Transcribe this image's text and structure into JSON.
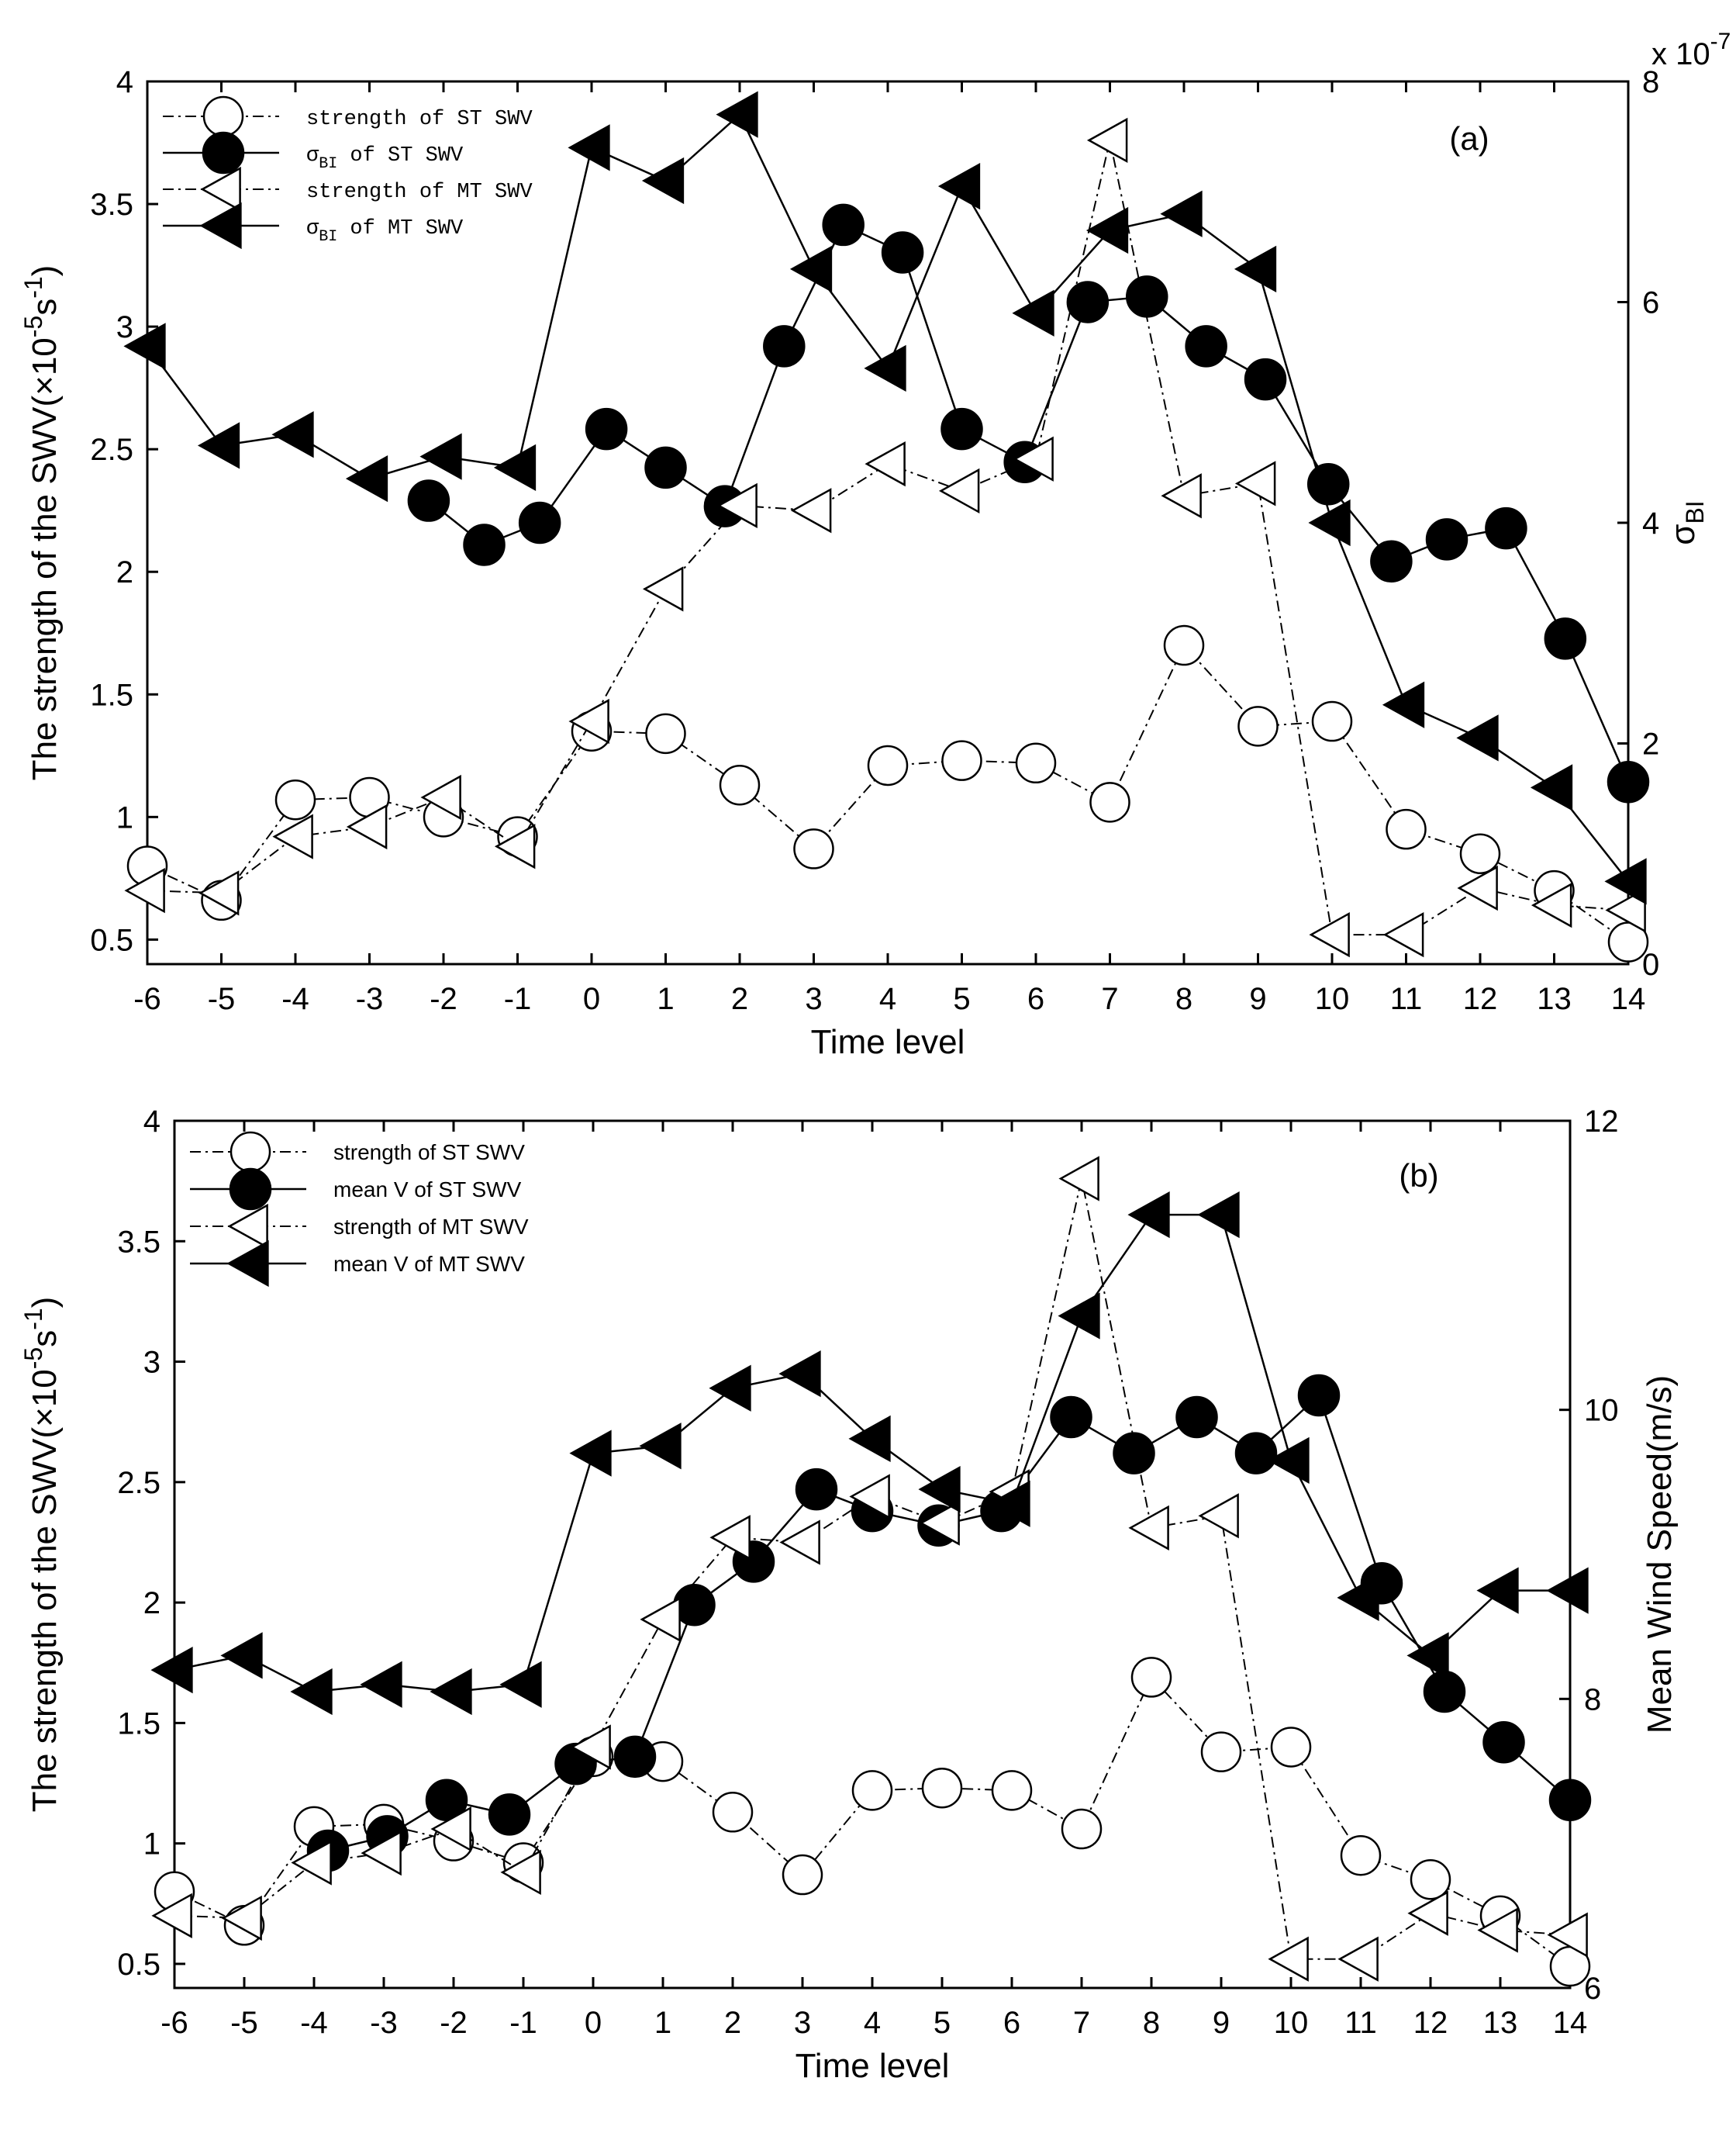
{
  "chart_data": [
    {
      "type": "line",
      "panel_label": "(a)",
      "xlabel": "Time level",
      "ylabel_left": "The strength of the SWV(×10",
      "ylabel_left_exp": "-5",
      "ylabel_left_unit": "s",
      "ylabel_left_unit_exp": "-1",
      "ylabel_left_close": ")",
      "ylabel_right": "σ",
      "ylabel_right_sub": "BI",
      "right_axis_multiplier": "x 10",
      "right_axis_multiplier_exp": "-7",
      "x_ticks": [
        "-6",
        "-5",
        "-4",
        "-3",
        "-2",
        "-1",
        "0",
        "1",
        "2",
        "3",
        "4",
        "5",
        "6",
        "7",
        "8",
        "9",
        "10",
        "11",
        "12",
        "13",
        "14"
      ],
      "y_ticks_left": [
        "0.5",
        "1",
        "1.5",
        "2",
        "2.5",
        "3",
        "3.5",
        "4"
      ],
      "y_ticks_right": [
        "0",
        "2",
        "4",
        "6",
        "8"
      ],
      "xlim": [
        -6,
        14
      ],
      "ylim_left": [
        0.4,
        4
      ],
      "ylim_right": [
        0,
        8
      ],
      "legend_position": "top-left",
      "series": [
        {
          "name": "strength of ST SWV",
          "axis": "left",
          "marker": "circle-open",
          "line": "dashdot",
          "points": [
            [
              -6,
              0.8
            ],
            [
              -5,
              0.66
            ],
            [
              -4,
              1.07
            ],
            [
              -3,
              1.08
            ],
            [
              -2,
              1.0
            ],
            [
              -1,
              0.92
            ],
            [
              0,
              1.35
            ],
            [
              1,
              1.34
            ],
            [
              2,
              1.13
            ],
            [
              3,
              0.87
            ],
            [
              4,
              1.21
            ],
            [
              5,
              1.23
            ],
            [
              6,
              1.22
            ],
            [
              7,
              1.06
            ],
            [
              8,
              1.7
            ],
            [
              9,
              1.37
            ],
            [
              10,
              1.39
            ],
            [
              11,
              0.95
            ],
            [
              12,
              0.85
            ],
            [
              13,
              0.7
            ],
            [
              14,
              0.49
            ]
          ]
        },
        {
          "name": "σ",
          "name_sub": "BI",
          "name_rest": " of ST SWV",
          "axis": "right",
          "marker": "circle-filled",
          "line": "solid",
          "points": [
            [
              -2.2,
              4.2
            ],
            [
              -1.45,
              3.8
            ],
            [
              -0.7,
              4.0
            ],
            [
              0.2,
              4.85
            ],
            [
              1.0,
              4.5
            ],
            [
              1.8,
              4.15
            ],
            [
              2.6,
              5.6
            ],
            [
              3.4,
              6.7
            ],
            [
              4.2,
              6.45
            ],
            [
              5.0,
              4.85
            ],
            [
              5.85,
              4.55
            ],
            [
              6.7,
              6.0
            ],
            [
              7.5,
              6.05
            ],
            [
              8.3,
              5.6
            ],
            [
              9.1,
              5.3
            ],
            [
              9.95,
              4.35
            ],
            [
              10.8,
              3.65
            ],
            [
              11.55,
              3.85
            ],
            [
              12.35,
              3.95
            ],
            [
              13.15,
              2.95
            ],
            [
              14.0,
              1.65
            ]
          ]
        },
        {
          "name": "strength of MT SWV",
          "axis": "left",
          "marker": "triangle-left-open",
          "line": "dashdot",
          "points": [
            [
              -6,
              0.7
            ],
            [
              -5,
              0.69
            ],
            [
              -4,
              0.92
            ],
            [
              -3,
              0.96
            ],
            [
              -2,
              1.08
            ],
            [
              -1,
              0.88
            ],
            [
              0,
              1.39
            ],
            [
              1,
              1.93
            ],
            [
              2,
              2.27
            ],
            [
              3,
              2.25
            ],
            [
              4,
              2.44
            ],
            [
              5,
              2.33
            ],
            [
              6,
              2.46
            ],
            [
              7,
              3.76
            ],
            [
              8,
              2.31
            ],
            [
              9,
              2.36
            ],
            [
              10,
              0.52
            ],
            [
              11,
              0.52
            ],
            [
              12,
              0.71
            ],
            [
              13,
              0.64
            ],
            [
              14,
              0.62
            ]
          ]
        },
        {
          "name": "σ",
          "name_sub": "BI",
          "name_rest": " of MT SWV",
          "axis": "right",
          "marker": "triangle-left-filled",
          "line": "solid",
          "points": [
            [
              -6,
              5.6
            ],
            [
              -5,
              4.7
            ],
            [
              -4,
              4.8
            ],
            [
              -3,
              4.4
            ],
            [
              -2,
              4.6
            ],
            [
              -1,
              4.5
            ],
            [
              0,
              7.4
            ],
            [
              1,
              7.1
            ],
            [
              2,
              7.7
            ],
            [
              3,
              6.3
            ],
            [
              4,
              5.4
            ],
            [
              5,
              7.05
            ],
            [
              6,
              5.9
            ],
            [
              7,
              6.65
            ],
            [
              8,
              6.8
            ],
            [
              9,
              6.3
            ],
            [
              10,
              4.0
            ],
            [
              11,
              2.35
            ],
            [
              12,
              2.05
            ],
            [
              13,
              1.6
            ],
            [
              14,
              0.75
            ]
          ]
        }
      ]
    },
    {
      "type": "line",
      "panel_label": "(b)",
      "xlabel": "Time level",
      "ylabel_left": "The strength of the SWV(×10",
      "ylabel_left_exp": "-5",
      "ylabel_left_unit": "s",
      "ylabel_left_unit_exp": "-1",
      "ylabel_left_close": ")",
      "ylabel_right": "Mean Wind Speed(m/s)",
      "x_ticks": [
        "-6",
        "-5",
        "-4",
        "-3",
        "-2",
        "-1",
        "0",
        "1",
        "2",
        "3",
        "4",
        "5",
        "6",
        "7",
        "8",
        "9",
        "10",
        "11",
        "12",
        "13",
        "14"
      ],
      "y_ticks_left": [
        "0.5",
        "1",
        "1.5",
        "2",
        "2.5",
        "3",
        "3.5",
        "4"
      ],
      "y_ticks_right": [
        "6",
        "8",
        "10",
        "12"
      ],
      "xlim": [
        -6,
        14
      ],
      "ylim_left": [
        0.4,
        4
      ],
      "ylim_right": [
        6,
        12
      ],
      "legend_position": "top-left",
      "series": [
        {
          "name": "strength of ST SWV",
          "axis": "left",
          "marker": "circle-open",
          "line": "dashdot",
          "points": [
            [
              -6,
              0.8
            ],
            [
              -5,
              0.66
            ],
            [
              -4,
              1.07
            ],
            [
              -3,
              1.08
            ],
            [
              -2,
              1.01
            ],
            [
              -1,
              0.92
            ],
            [
              0,
              1.36
            ],
            [
              1,
              1.34
            ],
            [
              2,
              1.13
            ],
            [
              3,
              0.87
            ],
            [
              4,
              1.22
            ],
            [
              5,
              1.23
            ],
            [
              6,
              1.22
            ],
            [
              7,
              1.06
            ],
            [
              8,
              1.69
            ],
            [
              9,
              1.38
            ],
            [
              10,
              1.4
            ],
            [
              11,
              0.95
            ],
            [
              12,
              0.85
            ],
            [
              13,
              0.7
            ],
            [
              14,
              0.49
            ]
          ]
        },
        {
          "name": "mean V of ST SWV",
          "axis": "right",
          "marker": "circle-filled",
          "line": "solid",
          "points": [
            [
              -3.8,
              6.95
            ],
            [
              -2.95,
              7.05
            ],
            [
              -2.1,
              7.3
            ],
            [
              -1.2,
              7.2
            ],
            [
              -0.25,
              7.55
            ],
            [
              0.6,
              7.6
            ],
            [
              1.45,
              8.65
            ],
            [
              2.3,
              8.95
            ],
            [
              3.2,
              9.45
            ],
            [
              4.0,
              9.3
            ],
            [
              4.95,
              9.2
            ],
            [
              5.85,
              9.3
            ],
            [
              6.85,
              9.95
            ],
            [
              7.75,
              9.7
            ],
            [
              8.65,
              9.95
            ],
            [
              9.5,
              9.7
            ],
            [
              10.4,
              10.1
            ],
            [
              11.3,
              8.8
            ],
            [
              12.2,
              8.05
            ],
            [
              13.05,
              7.7
            ],
            [
              14.0,
              7.3
            ]
          ]
        },
        {
          "name": "strength of MT SWV",
          "axis": "left",
          "marker": "triangle-left-open",
          "line": "dashdot",
          "points": [
            [
              -6,
              0.7
            ],
            [
              -5,
              0.69
            ],
            [
              -4,
              0.92
            ],
            [
              -3,
              0.96
            ],
            [
              -2,
              1.06
            ],
            [
              -1,
              0.88
            ],
            [
              0,
              1.4
            ],
            [
              1,
              1.93
            ],
            [
              2,
              2.27
            ],
            [
              3,
              2.25
            ],
            [
              4,
              2.44
            ],
            [
              5,
              2.33
            ],
            [
              6,
              2.46
            ],
            [
              7,
              3.76
            ],
            [
              8,
              2.31
            ],
            [
              9,
              2.36
            ],
            [
              10,
              0.52
            ],
            [
              11,
              0.52
            ],
            [
              12,
              0.71
            ],
            [
              13,
              0.64
            ],
            [
              14,
              0.62
            ]
          ]
        },
        {
          "name": "mean V of MT SWV",
          "axis": "right",
          "marker": "triangle-left-filled",
          "line": "solid",
          "points": [
            [
              -6,
              8.2
            ],
            [
              -5,
              8.3
            ],
            [
              -4,
              8.05
            ],
            [
              -3,
              8.1
            ],
            [
              -2,
              8.05
            ],
            [
              -1,
              8.1
            ],
            [
              0,
              9.7
            ],
            [
              1,
              9.75
            ],
            [
              2,
              10.15
            ],
            [
              3,
              10.25
            ],
            [
              4,
              9.8
            ],
            [
              5,
              9.45
            ],
            [
              6,
              9.35
            ],
            [
              7,
              10.65
            ],
            [
              8,
              11.35
            ],
            [
              9,
              11.35
            ],
            [
              10,
              9.65
            ],
            [
              11,
              8.7
            ],
            [
              12,
              8.3
            ],
            [
              13,
              8.75
            ],
            [
              14,
              8.75
            ]
          ]
        }
      ]
    }
  ]
}
